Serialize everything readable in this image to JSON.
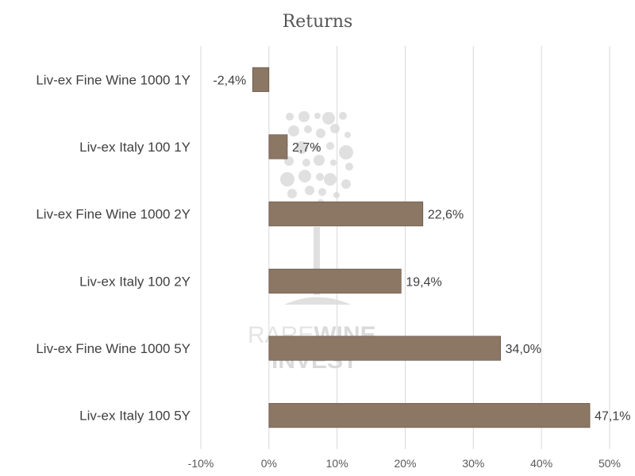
{
  "chart_data": {
    "type": "bar",
    "orientation": "horizontal",
    "title": "Returns",
    "categories": [
      "Liv-ex Fine Wine 1000 1Y",
      "Liv-ex Italy 100 1Y",
      "Liv-ex Fine Wine 1000 2Y",
      "Liv-ex Italy 100 2Y",
      "Liv-ex Fine Wine 1000 5Y",
      "Liv-ex Italy 100 5Y"
    ],
    "values": [
      -2.4,
      2.7,
      22.6,
      19.4,
      34.0,
      47.1
    ],
    "data_labels": [
      "-2,4%",
      "2,7%",
      "22,6%",
      "19,4%",
      "34,0%",
      "47,1%"
    ],
    "xlim": [
      -10,
      50
    ],
    "xticks": [
      -10,
      0,
      10,
      20,
      30,
      40,
      50
    ],
    "xtick_labels": [
      "-10%",
      "0%",
      "10%",
      "20%",
      "30%",
      "40%",
      "50%"
    ],
    "grid": "vertical",
    "bar_color": "#8c7664"
  },
  "watermark": {
    "line1_light": "RARE",
    "line1_bold": "WINE",
    "line2": "INVEST"
  }
}
